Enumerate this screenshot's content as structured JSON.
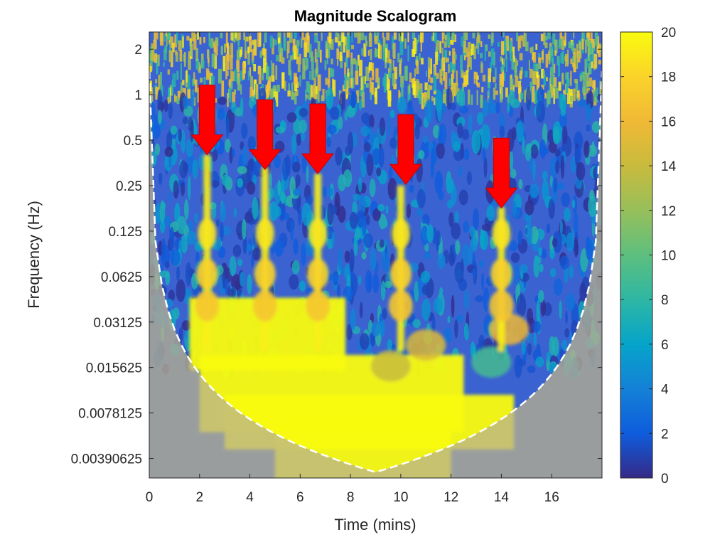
{
  "chart_data": {
    "type": "heatmap",
    "title": "Magnitude Scalogram",
    "xlabel": "Time (mins)",
    "ylabel": "Frequency (Hz)",
    "x_ticks": [
      "0",
      "2",
      "4",
      "6",
      "8",
      "10",
      "12",
      "14",
      "16"
    ],
    "x_tick_values": [
      0,
      2,
      4,
      6,
      8,
      10,
      12,
      14,
      16
    ],
    "xlim": [
      0,
      18
    ],
    "y_scale": "log2",
    "y_ticks": [
      "2",
      "1",
      "0.5",
      "0.25",
      "0.125",
      "0.0625",
      "0.03125",
      "0.015625",
      "0.0078125",
      "0.00390625"
    ],
    "y_tick_values": [
      2,
      1,
      0.5,
      0.25,
      0.125,
      0.0625,
      0.03125,
      0.015625,
      0.0078125,
      0.00390625
    ],
    "ylim": [
      0.0029,
      2.6
    ],
    "colorbar": {
      "ticks": [
        "0",
        "2",
        "4",
        "6",
        "8",
        "10",
        "12",
        "14",
        "16",
        "18",
        "20"
      ],
      "tick_values": [
        0,
        2,
        4,
        6,
        8,
        10,
        12,
        14,
        16,
        18,
        20
      ],
      "range": [
        0,
        20
      ],
      "colormap": "parula"
    },
    "cone_of_influence": {
      "style": "dashed",
      "color": "#ffffff",
      "apex_time": 9
    },
    "ridges": [
      {
        "time": 2.3,
        "upper_freq": 0.4
      },
      {
        "time": 4.6,
        "upper_freq": 0.33
      },
      {
        "time": 6.7,
        "upper_freq": 0.3
      },
      {
        "time": 10,
        "upper_freq": 0.25
      },
      {
        "time": 14,
        "upper_freq": 0.18
      }
    ],
    "annotations": [
      {
        "type": "arrow",
        "color": "#ff0000",
        "time": 2.3,
        "tip_freq": 0.4
      },
      {
        "type": "arrow",
        "color": "#ff0000",
        "time": 4.6,
        "tip_freq": 0.32
      },
      {
        "type": "arrow",
        "color": "#ff0000",
        "time": 6.7,
        "tip_freq": 0.3
      },
      {
        "type": "arrow",
        "color": "#ff0000",
        "time": 10.2,
        "tip_freq": 0.255
      },
      {
        "type": "arrow",
        "color": "#ff0000",
        "time": 14,
        "tip_freq": 0.178
      }
    ],
    "grid": false
  }
}
